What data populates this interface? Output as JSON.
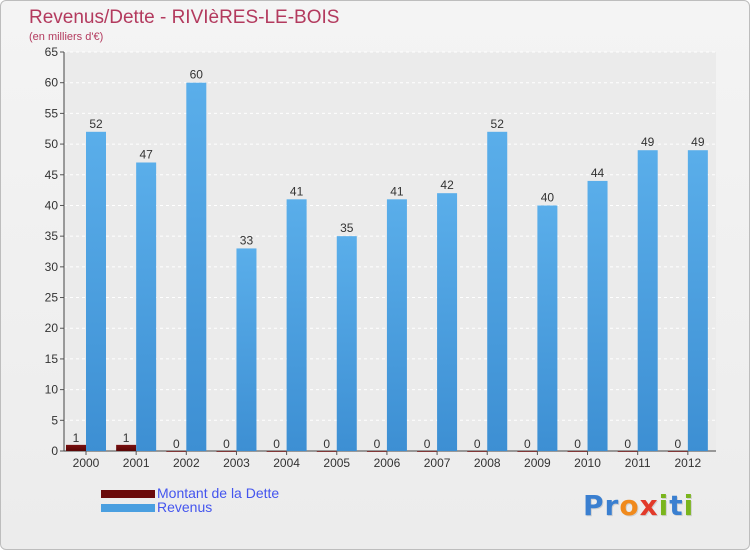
{
  "chart_data": {
    "type": "bar",
    "title": "Revenus/Dette - RIVIèRES-LE-BOIS",
    "subtitle": "(en milliers d'€)",
    "categories": [
      "2000",
      "2001",
      "2002",
      "2003",
      "2004",
      "2005",
      "2006",
      "2007",
      "2008",
      "2009",
      "2010",
      "2011",
      "2012"
    ],
    "series": [
      {
        "name": "Montant de la Dette",
        "color": "#6b0a0a",
        "values": [
          1,
          1,
          0,
          0,
          0,
          0,
          0,
          0,
          0,
          0,
          0,
          0,
          0
        ]
      },
      {
        "name": "Revenus",
        "color": "#4a9fe0",
        "values": [
          52,
          47,
          60,
          33,
          41,
          35,
          41,
          42,
          52,
          40,
          44,
          49,
          49
        ]
      }
    ],
    "ylim": [
      0,
      65
    ],
    "yticks": [
      0,
      5,
      10,
      15,
      20,
      25,
      30,
      35,
      40,
      45,
      50,
      55,
      60,
      65
    ],
    "grid": true,
    "legend_position": "bottom-left"
  },
  "logo": {
    "text": "Proxiti",
    "letters": [
      {
        "ch": "P",
        "color": "#3a7fd0"
      },
      {
        "ch": "r",
        "color": "#3a7fd0"
      },
      {
        "ch": "o",
        "color": "#f08a1c"
      },
      {
        "ch": "x",
        "color": "#e23a2a"
      },
      {
        "ch": "i",
        "color": "#7ab51d"
      },
      {
        "ch": "t",
        "color": "#3a7fd0"
      },
      {
        "ch": "i",
        "color": "#7ab51d"
      }
    ]
  }
}
